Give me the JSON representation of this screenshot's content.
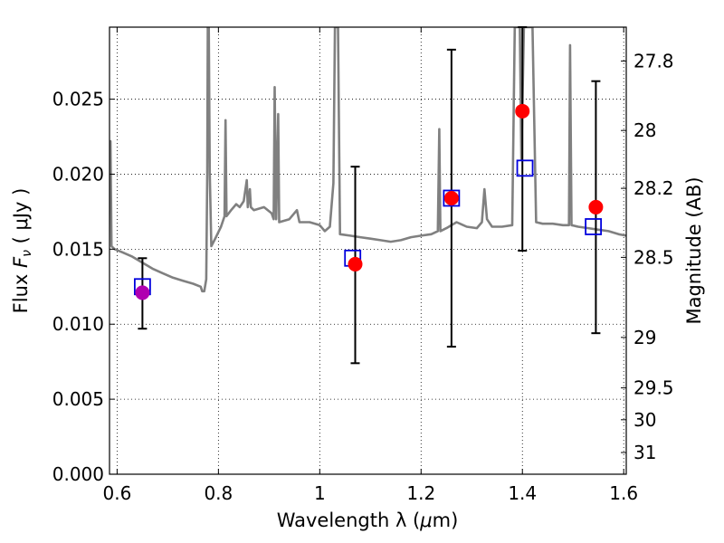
{
  "chart_data": {
    "type": "scatter",
    "xlabel_prefix": "Wavelength  λ (",
    "xlabel_mu": "μ",
    "xlabel_suffix": "m)",
    "ylabel_prefix": "Flux  ",
    "ylabel_F": "F",
    "ylabel_nu": "ν",
    "ylabel_suffix": "  ( μJy )",
    "y2label": "Magnitude (AB)",
    "xlim": [
      0.585,
      1.605
    ],
    "ylim": [
      0.0,
      0.0298
    ],
    "x_ticks": [
      {
        "value": 0.6,
        "label": "0.6"
      },
      {
        "value": 0.8,
        "label": "0.8"
      },
      {
        "value": 1.0,
        "label": "1"
      },
      {
        "value": 1.2,
        "label": "1.2"
      },
      {
        "value": 1.4,
        "label": "1.4"
      },
      {
        "value": 1.6,
        "label": "1.6"
      }
    ],
    "y_ticks": [
      {
        "value": 0.0,
        "label": "0.000"
      },
      {
        "value": 0.005,
        "label": "0.005"
      },
      {
        "value": 0.01,
        "label": "0.010"
      },
      {
        "value": 0.015,
        "label": "0.015"
      },
      {
        "value": 0.02,
        "label": "0.020"
      },
      {
        "value": 0.025,
        "label": "0.025"
      }
    ],
    "mag_ticks": [
      {
        "value": 27.8,
        "label": "27.8"
      },
      {
        "value": 28.0,
        "label": "28"
      },
      {
        "value": 28.2,
        "label": "28.2"
      },
      {
        "value": 28.5,
        "label": "28.5"
      },
      {
        "value": 29.0,
        "label": "29"
      },
      {
        "value": 29.5,
        "label": "29.5"
      },
      {
        "value": 30.0,
        "label": "30"
      },
      {
        "value": 31.0,
        "label": "31"
      }
    ],
    "grid": true,
    "model_spectrum": {
      "color": "#808080",
      "points": [
        [
          0.585,
          0.0213
        ],
        [
          0.587,
          0.0222
        ],
        [
          0.589,
          0.0152
        ],
        [
          0.595,
          0.015
        ],
        [
          0.61,
          0.0148
        ],
        [
          0.63,
          0.0145
        ],
        [
          0.65,
          0.0141
        ],
        [
          0.67,
          0.0137
        ],
        [
          0.69,
          0.0134
        ],
        [
          0.71,
          0.0131
        ],
        [
          0.73,
          0.0129
        ],
        [
          0.75,
          0.0127
        ],
        [
          0.765,
          0.0125
        ],
        [
          0.768,
          0.0122
        ],
        [
          0.772,
          0.0122
        ],
        [
          0.776,
          0.013
        ],
        [
          0.778,
          0.02
        ],
        [
          0.779,
          0.0298
        ],
        [
          0.781,
          0.0298
        ],
        [
          0.783,
          0.02
        ],
        [
          0.786,
          0.0152
        ],
        [
          0.795,
          0.0158
        ],
        [
          0.805,
          0.0165
        ],
        [
          0.812,
          0.0172
        ],
        [
          0.814,
          0.0236
        ],
        [
          0.816,
          0.0172
        ],
        [
          0.825,
          0.0176
        ],
        [
          0.835,
          0.018
        ],
        [
          0.842,
          0.0178
        ],
        [
          0.85,
          0.0182
        ],
        [
          0.856,
          0.0196
        ],
        [
          0.858,
          0.0178
        ],
        [
          0.862,
          0.019
        ],
        [
          0.864,
          0.0178
        ],
        [
          0.87,
          0.0176
        ],
        [
          0.89,
          0.0178
        ],
        [
          0.905,
          0.0174
        ],
        [
          0.909,
          0.017
        ],
        [
          0.911,
          0.0258
        ],
        [
          0.914,
          0.017
        ],
        [
          0.918,
          0.024
        ],
        [
          0.92,
          0.0168
        ],
        [
          0.94,
          0.017
        ],
        [
          0.955,
          0.0176
        ],
        [
          0.96,
          0.0168
        ],
        [
          0.98,
          0.0168
        ],
        [
          1.0,
          0.0166
        ],
        [
          1.01,
          0.0162
        ],
        [
          1.02,
          0.0165
        ],
        [
          1.027,
          0.0194
        ],
        [
          1.03,
          0.0298
        ],
        [
          1.036,
          0.0298
        ],
        [
          1.04,
          0.016
        ],
        [
          1.06,
          0.0159
        ],
        [
          1.08,
          0.0158
        ],
        [
          1.1,
          0.0157
        ],
        [
          1.12,
          0.0156
        ],
        [
          1.14,
          0.0155
        ],
        [
          1.16,
          0.0156
        ],
        [
          1.18,
          0.0158
        ],
        [
          1.2,
          0.0159
        ],
        [
          1.22,
          0.016
        ],
        [
          1.233,
          0.0162
        ],
        [
          1.236,
          0.023
        ],
        [
          1.238,
          0.0162
        ],
        [
          1.25,
          0.0164
        ],
        [
          1.27,
          0.0168
        ],
        [
          1.29,
          0.0165
        ],
        [
          1.31,
          0.0164
        ],
        [
          1.32,
          0.0168
        ],
        [
          1.325,
          0.019
        ],
        [
          1.33,
          0.017
        ],
        [
          1.34,
          0.0165
        ],
        [
          1.36,
          0.0165
        ],
        [
          1.38,
          0.0166
        ],
        [
          1.385,
          0.0298
        ],
        [
          1.395,
          0.0298
        ],
        [
          1.398,
          0.021
        ],
        [
          1.403,
          0.0298
        ],
        [
          1.418,
          0.0298
        ],
        [
          1.42,
          0.0298
        ],
        [
          1.427,
          0.0168
        ],
        [
          1.44,
          0.0167
        ],
        [
          1.46,
          0.0167
        ],
        [
          1.48,
          0.0166
        ],
        [
          1.492,
          0.0166
        ],
        [
          1.494,
          0.0286
        ],
        [
          1.497,
          0.0166
        ],
        [
          1.51,
          0.0165
        ],
        [
          1.53,
          0.0164
        ],
        [
          1.55,
          0.0163
        ],
        [
          1.57,
          0.0162
        ],
        [
          1.59,
          0.016
        ],
        [
          1.605,
          0.0159
        ]
      ]
    },
    "observed_points": [
      {
        "x": 0.65,
        "y": 0.0121,
        "yerr_low": 0.0097,
        "yerr_high": 0.0144,
        "color": "#b000b0"
      },
      {
        "x": 1.07,
        "y": 0.014,
        "yerr_low": 0.0074,
        "yerr_high": 0.0205,
        "color": "#ff0000"
      },
      {
        "x": 1.26,
        "y": 0.0184,
        "yerr_low": 0.0085,
        "yerr_high": 0.0283,
        "color": "#ff0000"
      },
      {
        "x": 1.4,
        "y": 0.0242,
        "yerr_low": 0.0149,
        "yerr_high": 0.0298,
        "color": "#ff0000"
      },
      {
        "x": 1.545,
        "y": 0.0178,
        "yerr_low": 0.0094,
        "yerr_high": 0.0262,
        "color": "#ff0000"
      }
    ],
    "model_photometry": {
      "color": "#0000dd",
      "points": [
        {
          "x": 0.65,
          "y": 0.0125
        },
        {
          "x": 1.065,
          "y": 0.0144
        },
        {
          "x": 1.26,
          "y": 0.0184
        },
        {
          "x": 1.405,
          "y": 0.0204
        },
        {
          "x": 1.54,
          "y": 0.0165
        }
      ]
    }
  }
}
